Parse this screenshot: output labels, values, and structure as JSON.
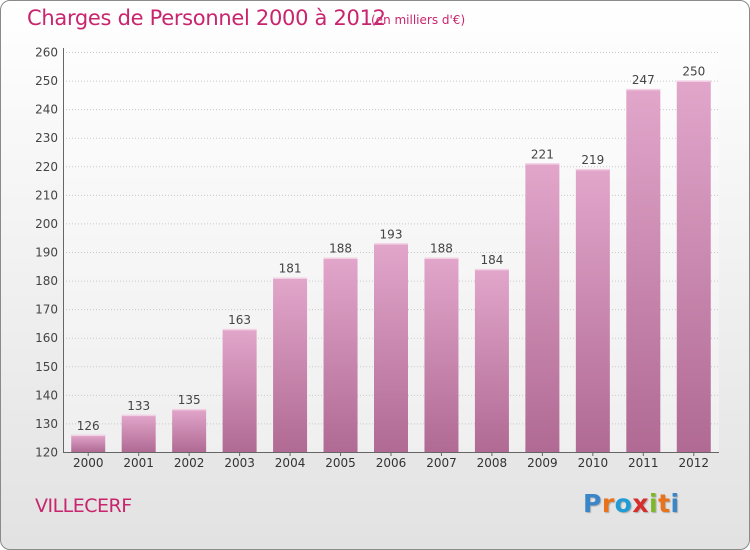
{
  "header": {
    "title": "Charges de Personnel 2000 à 2012",
    "subtitle": "(en milliers d'€)"
  },
  "footer": {
    "commune": "VILLECERF",
    "logo": "Proxiti",
    "logo_colors": [
      "#3a86c8",
      "#e8731c",
      "#1f9bd6",
      "#d62d2d",
      "#7cb829",
      "#e8731c",
      "#3a86c8"
    ]
  },
  "colors": {
    "accent": "#c8256e",
    "bar_top": "#e2a6cb",
    "bar_bottom": "#b06a93",
    "grid": "#c9c9c9"
  },
  "chart_data": {
    "type": "bar",
    "categories": [
      "2000",
      "2001",
      "2002",
      "2003",
      "2004",
      "2005",
      "2006",
      "2007",
      "2008",
      "2009",
      "2010",
      "2011",
      "2012"
    ],
    "values": [
      126,
      133,
      135,
      163,
      181,
      188,
      193,
      188,
      184,
      221,
      219,
      247,
      250
    ],
    "ylim": [
      120,
      260
    ],
    "yticks": [
      120,
      130,
      140,
      150,
      160,
      170,
      180,
      190,
      200,
      210,
      220,
      230,
      240,
      250,
      260
    ],
    "grid": true,
    "data_labels": true
  }
}
